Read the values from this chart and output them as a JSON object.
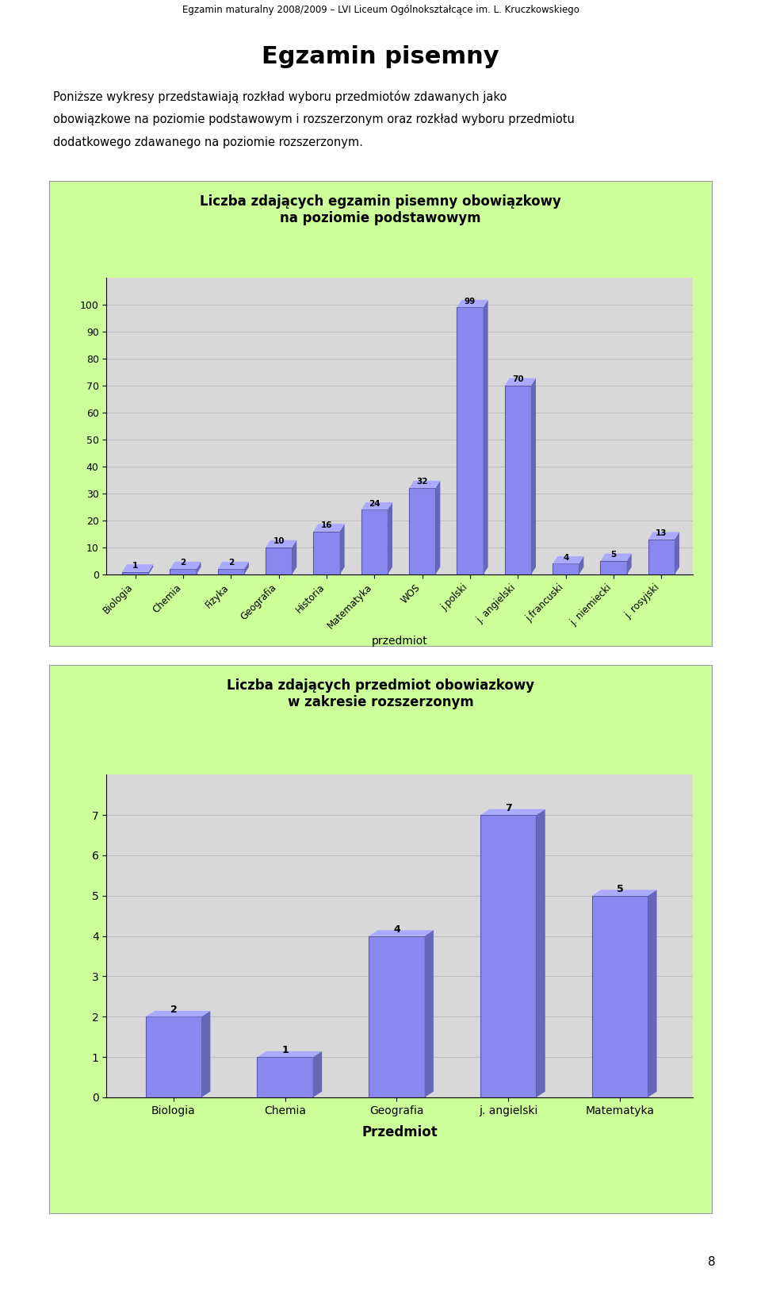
{
  "page_title": "Egzamin maturalny 2008/2009 – LVI Liceum Ogólnokształcące im. L. Kruczkowskiego",
  "main_title": "Egzamin pisemny",
  "intro_lines": [
    "Poniższe wykresy przedstawiają rozkład wyboru przedmiotów zdawanych jako",
    "obowiązkowe na poziomie podstawowym i rozszerzonym oraz rozkład wyboru przedmiotu",
    "dodatkowego zdawanego na poziomie rozszerzonym."
  ],
  "chart1": {
    "title": "Liczba zdających egzamin pisemny obowiązkowy\nna poziomie podstawowym",
    "categories": [
      "Biologia",
      "Chemia",
      "Fizyka",
      "Geografia",
      "Historia",
      "Matematyka",
      "WOS",
      "j.polski",
      "j. angielski",
      "j.francuski",
      "j. niemiecki",
      "j. rosyjski"
    ],
    "values": [
      1,
      2,
      2,
      10,
      16,
      24,
      32,
      99,
      70,
      4,
      5,
      13
    ],
    "xlabel": "przedmiot",
    "ylim": [
      0,
      110
    ],
    "yticks": [
      0,
      10,
      20,
      30,
      40,
      50,
      60,
      70,
      80,
      90,
      100
    ]
  },
  "chart2": {
    "title": "Liczba zdających przedmiot obowiazkowy\nw zakresie rozszerzonym",
    "categories": [
      "Biologia",
      "Chemia",
      "Geografia",
      "j. angielski",
      "Matematyka"
    ],
    "values": [
      2,
      1,
      4,
      7,
      5
    ],
    "xlabel": "Przedmiot",
    "ylim": [
      0,
      8
    ],
    "yticks": [
      0,
      1,
      2,
      3,
      4,
      5,
      6,
      7
    ]
  },
  "bar_color": "#8888ee",
  "bar_edge_color": "#5555aa",
  "bar_dark_color": "#6666bb",
  "bar_top_color": "#aaaaff",
  "bg_color": "#ccff99",
  "chart_bg_color": "#d8d8d8",
  "grid_color": "#bbbbbb",
  "page_num": "8"
}
